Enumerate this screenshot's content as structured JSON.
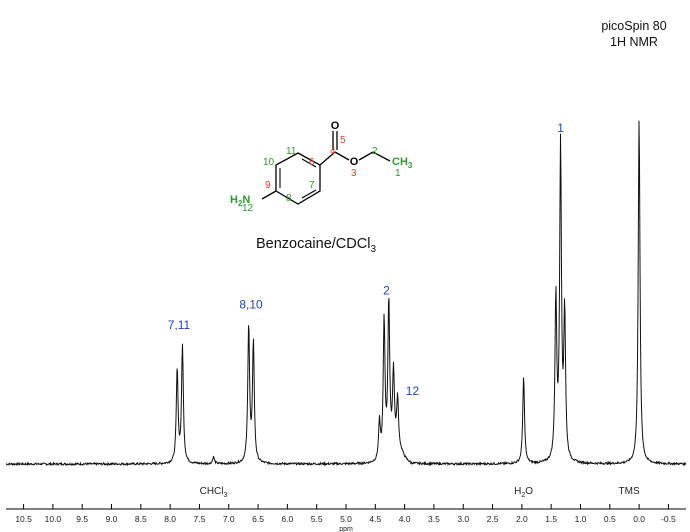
{
  "instrument": {
    "line1": "picoSpin 80",
    "line2": "1H NMR"
  },
  "compound": {
    "name": "Benzocaine/CDCl",
    "subscript": "3"
  },
  "structure": {
    "atoms": {
      "O_carbonyl": "O",
      "O_ester": "O",
      "CH3": "CH",
      "CH3_sub": "3",
      "NH2_N": "N",
      "NH2_H": "H",
      "NH2_sub": "2"
    },
    "numbers": {
      "n5": "5",
      "n4": "4",
      "n6": "6",
      "n3": "3",
      "n2": "2",
      "n1": "1",
      "n11": "11",
      "n10": "10",
      "n9": "9",
      "n7": "7",
      "n8": "8",
      "n12": "12"
    }
  },
  "chart_data": {
    "type": "line",
    "title": "",
    "xlabel": "ppm",
    "ylabel": "",
    "xlim": [
      10.8,
      -0.8
    ],
    "x_reversed": true,
    "grid": false,
    "xticks": [
      "10.5",
      "10.0",
      "9.5",
      "9.0",
      "8.5",
      "8.0",
      "7.5",
      "7.0",
      "6.5",
      "6.0",
      "5.5",
      "5.0",
      "4.5",
      "4.0",
      "3.5",
      "3.0",
      "2.5",
      "2.0",
      "1.5",
      "1.0",
      "0.5",
      "0.0",
      "-0.5"
    ],
    "peaks": [
      {
        "ppm": 7.88,
        "height": 0.27
      },
      {
        "ppm": 7.79,
        "height": 0.34
      },
      {
        "ppm": 7.26,
        "height": 0.02
      },
      {
        "ppm": 6.66,
        "height": 0.4
      },
      {
        "ppm": 6.58,
        "height": 0.35
      },
      {
        "ppm": 4.43,
        "height": 0.11
      },
      {
        "ppm": 4.35,
        "height": 0.4
      },
      {
        "ppm": 4.27,
        "height": 0.44
      },
      {
        "ppm": 4.19,
        "height": 0.22
      },
      {
        "ppm": 4.12,
        "height": 0.14
      },
      {
        "ppm": 1.97,
        "height": 0.25
      },
      {
        "ppm": 1.42,
        "height": 0.47
      },
      {
        "ppm": 1.34,
        "height": 0.91
      },
      {
        "ppm": 1.27,
        "height": 0.42
      },
      {
        "ppm": 0.0,
        "height": 1.0
      }
    ],
    "peak_labels": [
      {
        "text": "7,11",
        "ppm": 7.85,
        "height": 0.39
      },
      {
        "text": "8,10",
        "ppm": 6.62,
        "height": 0.45
      },
      {
        "text": "2",
        "ppm": 4.31,
        "height": 0.49
      },
      {
        "text": "12",
        "ppm": 3.98,
        "height": 0.2
      },
      {
        "text": "1",
        "ppm": 1.34,
        "height": 0.96
      }
    ],
    "solvent_labels": [
      {
        "text": "CHCl",
        "sub": "3",
        "ppm": 7.26
      },
      {
        "text": "H",
        "sub": "2",
        "tail": "O",
        "ppm": 1.97
      },
      {
        "text": "TMS",
        "ppm": 0.0
      }
    ]
  }
}
